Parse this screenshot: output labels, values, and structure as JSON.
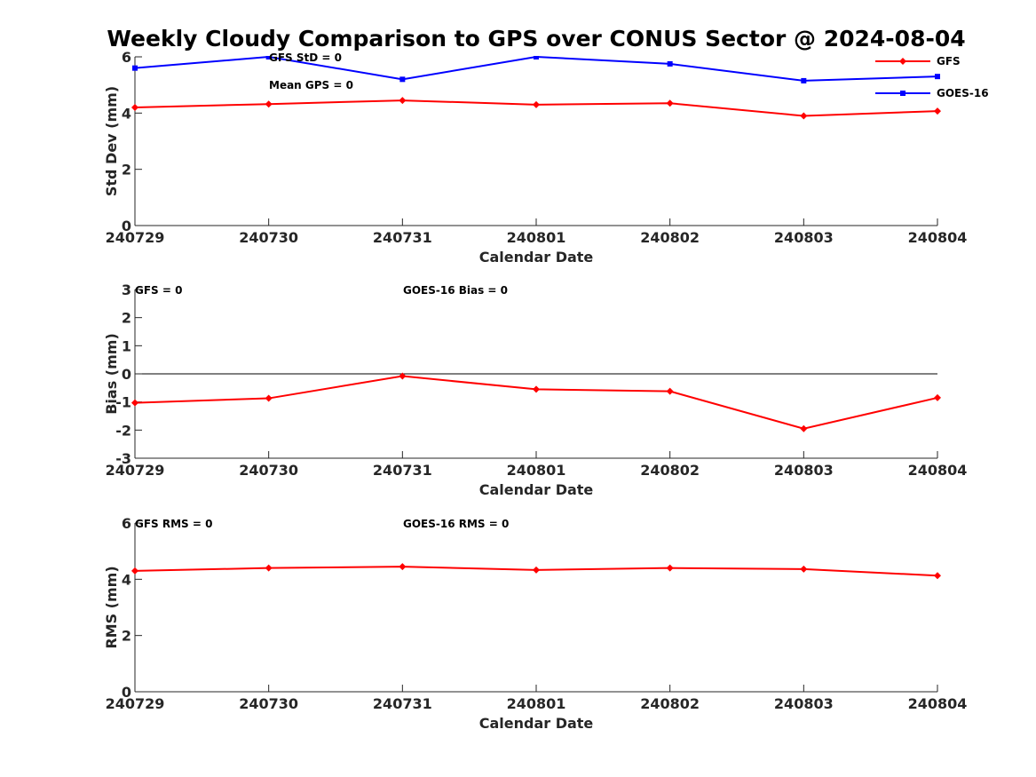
{
  "chart_data": [
    {
      "type": "line",
      "title": "Weekly Cloudy Comparison to GPS over CONUS Sector @ 2024-08-04",
      "xlabel": "Calendar Date",
      "ylabel": "Std Dev (mm)",
      "categories": [
        "240729",
        "240730",
        "240731",
        "240801",
        "240802",
        "240803",
        "240804"
      ],
      "ylim": [
        0,
        6
      ],
      "yticks": [
        "0",
        "2",
        "4",
        "6"
      ],
      "series": [
        {
          "name": "GFS",
          "color": "#ff0000",
          "marker": "diamond",
          "values": [
            4.2,
            4.32,
            4.45,
            4.3,
            4.35,
            3.9,
            4.07
          ]
        },
        {
          "name": "GOES-16",
          "color": "#0000ff",
          "marker": "square",
          "values": [
            5.6,
            6.0,
            5.2,
            6.0,
            5.75,
            5.15,
            5.3
          ]
        }
      ],
      "annotations": [
        "GFS StD = 0",
        "Mean GPS = 0"
      ],
      "legend": "top-right"
    },
    {
      "type": "line",
      "xlabel": "Calendar Date",
      "ylabel": "Bias (mm)",
      "categories": [
        "240729",
        "240730",
        "240731",
        "240801",
        "240802",
        "240803",
        "240804"
      ],
      "ylim": [
        -3,
        3
      ],
      "yticks": [
        "-3",
        "-2",
        "-1",
        "0",
        "1",
        "2",
        "3"
      ],
      "series": [
        {
          "name": "GFS",
          "color": "#ff0000",
          "marker": "diamond",
          "values": [
            -1.03,
            -0.87,
            -0.08,
            -0.55,
            -0.62,
            -1.95,
            -0.85
          ]
        }
      ],
      "annotations": [
        "GFS = 0",
        "GOES-16 Bias  = 0"
      ]
    },
    {
      "type": "line",
      "xlabel": "Calendar Date",
      "ylabel": "RMS (mm)",
      "categories": [
        "240729",
        "240730",
        "240731",
        "240801",
        "240802",
        "240803",
        "240804"
      ],
      "ylim": [
        0,
        6
      ],
      "yticks": [
        "0",
        "2",
        "4",
        "6"
      ],
      "series": [
        {
          "name": "GFS",
          "color": "#ff0000",
          "marker": "diamond",
          "values": [
            4.3,
            4.4,
            4.45,
            4.33,
            4.4,
            4.36,
            4.13
          ]
        }
      ],
      "annotations": [
        "GFS RMS = 0",
        "GOES-16 RMS = 0"
      ]
    }
  ]
}
